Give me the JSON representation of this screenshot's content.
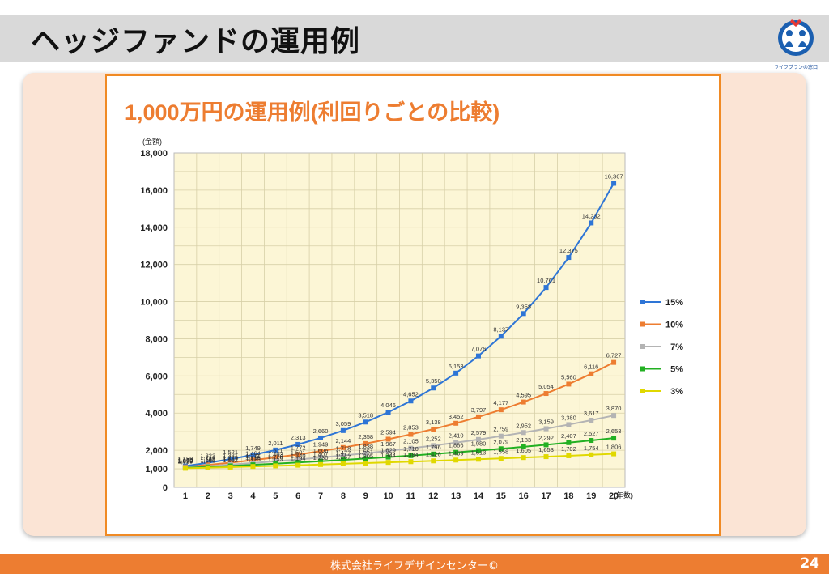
{
  "slide": {
    "title": "ヘッジファンドの運用例",
    "logo_text": "ライフプランの窓口",
    "footer": "株式会社ライフデザインセンター©",
    "page_number": "24"
  },
  "colors": {
    "title_bar": "#d9d9d9",
    "panel": "#fbe4d5",
    "frame": "#f08a24",
    "plot_bg": "#fcf6d6",
    "footer": "#ed7d31",
    "chart_title": "#ed7d31"
  },
  "chart_data": {
    "type": "line",
    "title": "1,000万円の運用例(利回りごとの比較)",
    "ylabel": "(金額)",
    "xlabel": "(年数)",
    "ylim": [
      0,
      18000
    ],
    "yticks": [
      "0",
      "1,000",
      "2,000",
      "4,000",
      "6,000",
      "8,000",
      "10,000",
      "12,000",
      "14,000",
      "16,000",
      "18,000"
    ],
    "ytick_values": [
      0,
      1000,
      2000,
      4000,
      6000,
      8000,
      10000,
      12000,
      14000,
      16000,
      18000
    ],
    "x": [
      1,
      2,
      3,
      4,
      5,
      6,
      7,
      8,
      9,
      10,
      11,
      12,
      13,
      14,
      15,
      16,
      17,
      18,
      19,
      20
    ],
    "grid": true,
    "legend_position": "right",
    "series": [
      {
        "name": "15%",
        "color": "#2e75d6",
        "values": [
          1150,
          1323,
          1521,
          1749,
          2011,
          2313,
          2660,
          3059,
          3518,
          4046,
          4652,
          5350,
          6153,
          7076,
          8137,
          9358,
          10761,
          12375,
          14232,
          16367
        ],
        "labels": [
          "1,150",
          "1,323",
          "1,521",
          "1,749",
          "2,011",
          "2,313",
          "2,660",
          "3,059",
          "3,518",
          "4,046",
          "4,652",
          "5,350",
          "6,153",
          "7,076",
          "8,137",
          "9,358",
          "10,761",
          "12,375",
          "14,232",
          "16,367"
        ]
      },
      {
        "name": "10%",
        "color": "#ed7d31",
        "values": [
          1100,
          1210,
          1331,
          1464,
          1611,
          1772,
          1949,
          2144,
          2358,
          2594,
          2853,
          3138,
          3452,
          3797,
          4177,
          4595,
          5054,
          5560,
          6116,
          6727
        ],
        "labels": [
          "1,100",
          "1,210",
          "1,331",
          "1,464",
          "1,611",
          "1,772",
          "1,949",
          "2,144",
          "2,358",
          "2,594",
          "2,853",
          "3,138",
          "3,452",
          "3,797",
          "4,177",
          "4,595",
          "5,054",
          "5,560",
          "6,116",
          "6,727"
        ]
      },
      {
        "name": "7%",
        "color": "#b4b4b4",
        "values": [
          1070,
          1145,
          1225,
          1311,
          1403,
          1501,
          1606,
          1718,
          1838,
          1967,
          2105,
          2252,
          2410,
          2579,
          2759,
          2952,
          3159,
          3380,
          3617,
          3870
        ],
        "labels": [
          "1,070",
          "1,145",
          "1,225",
          "1,311",
          "1,403",
          "1,501",
          "1,606",
          "1,718",
          "1,838",
          "1,967",
          "2,105",
          "2,252",
          "2,410",
          "2,579",
          "2,759",
          "2,952",
          "3,159",
          "3,380",
          "3,617",
          "3,870"
        ]
      },
      {
        "name": "5%",
        "color": "#22b022",
        "values": [
          1050,
          1102,
          1157,
          1215,
          1276,
          1340,
          1407,
          1477,
          1551,
          1629,
          1710,
          1796,
          1886,
          1980,
          2079,
          2183,
          2292,
          2407,
          2527,
          2653
        ],
        "labels": [
          "1,050",
          "1,102",
          "1,157",
          "1,215",
          "1,276",
          "1,340",
          "1,407",
          "1,477",
          "1,551",
          "1,629",
          "1,710",
          "1,796",
          "1,886",
          "1,980",
          "2,079",
          "2,183",
          "2,292",
          "2,407",
          "2,527",
          "2,653"
        ]
      },
      {
        "name": "3%",
        "color": "#e0d800",
        "values": [
          1029,
          1060,
          1092,
          1125,
          1159,
          1194,
          1230,
          1267,
          1305,
          1344,
          1384,
          1426,
          1469,
          1513,
          1558,
          1605,
          1653,
          1702,
          1754,
          1806
        ],
        "labels": [
          "1,029",
          "1,060",
          "1,092",
          "1,125",
          "1,159",
          "1,194",
          "1,230",
          "1,267",
          "1,305",
          "1,344",
          "1,384",
          "1,426",
          "1,469",
          "1,513",
          "1,558",
          "1,605",
          "1,653",
          "1,702",
          "1,754",
          "1,806"
        ]
      }
    ]
  }
}
